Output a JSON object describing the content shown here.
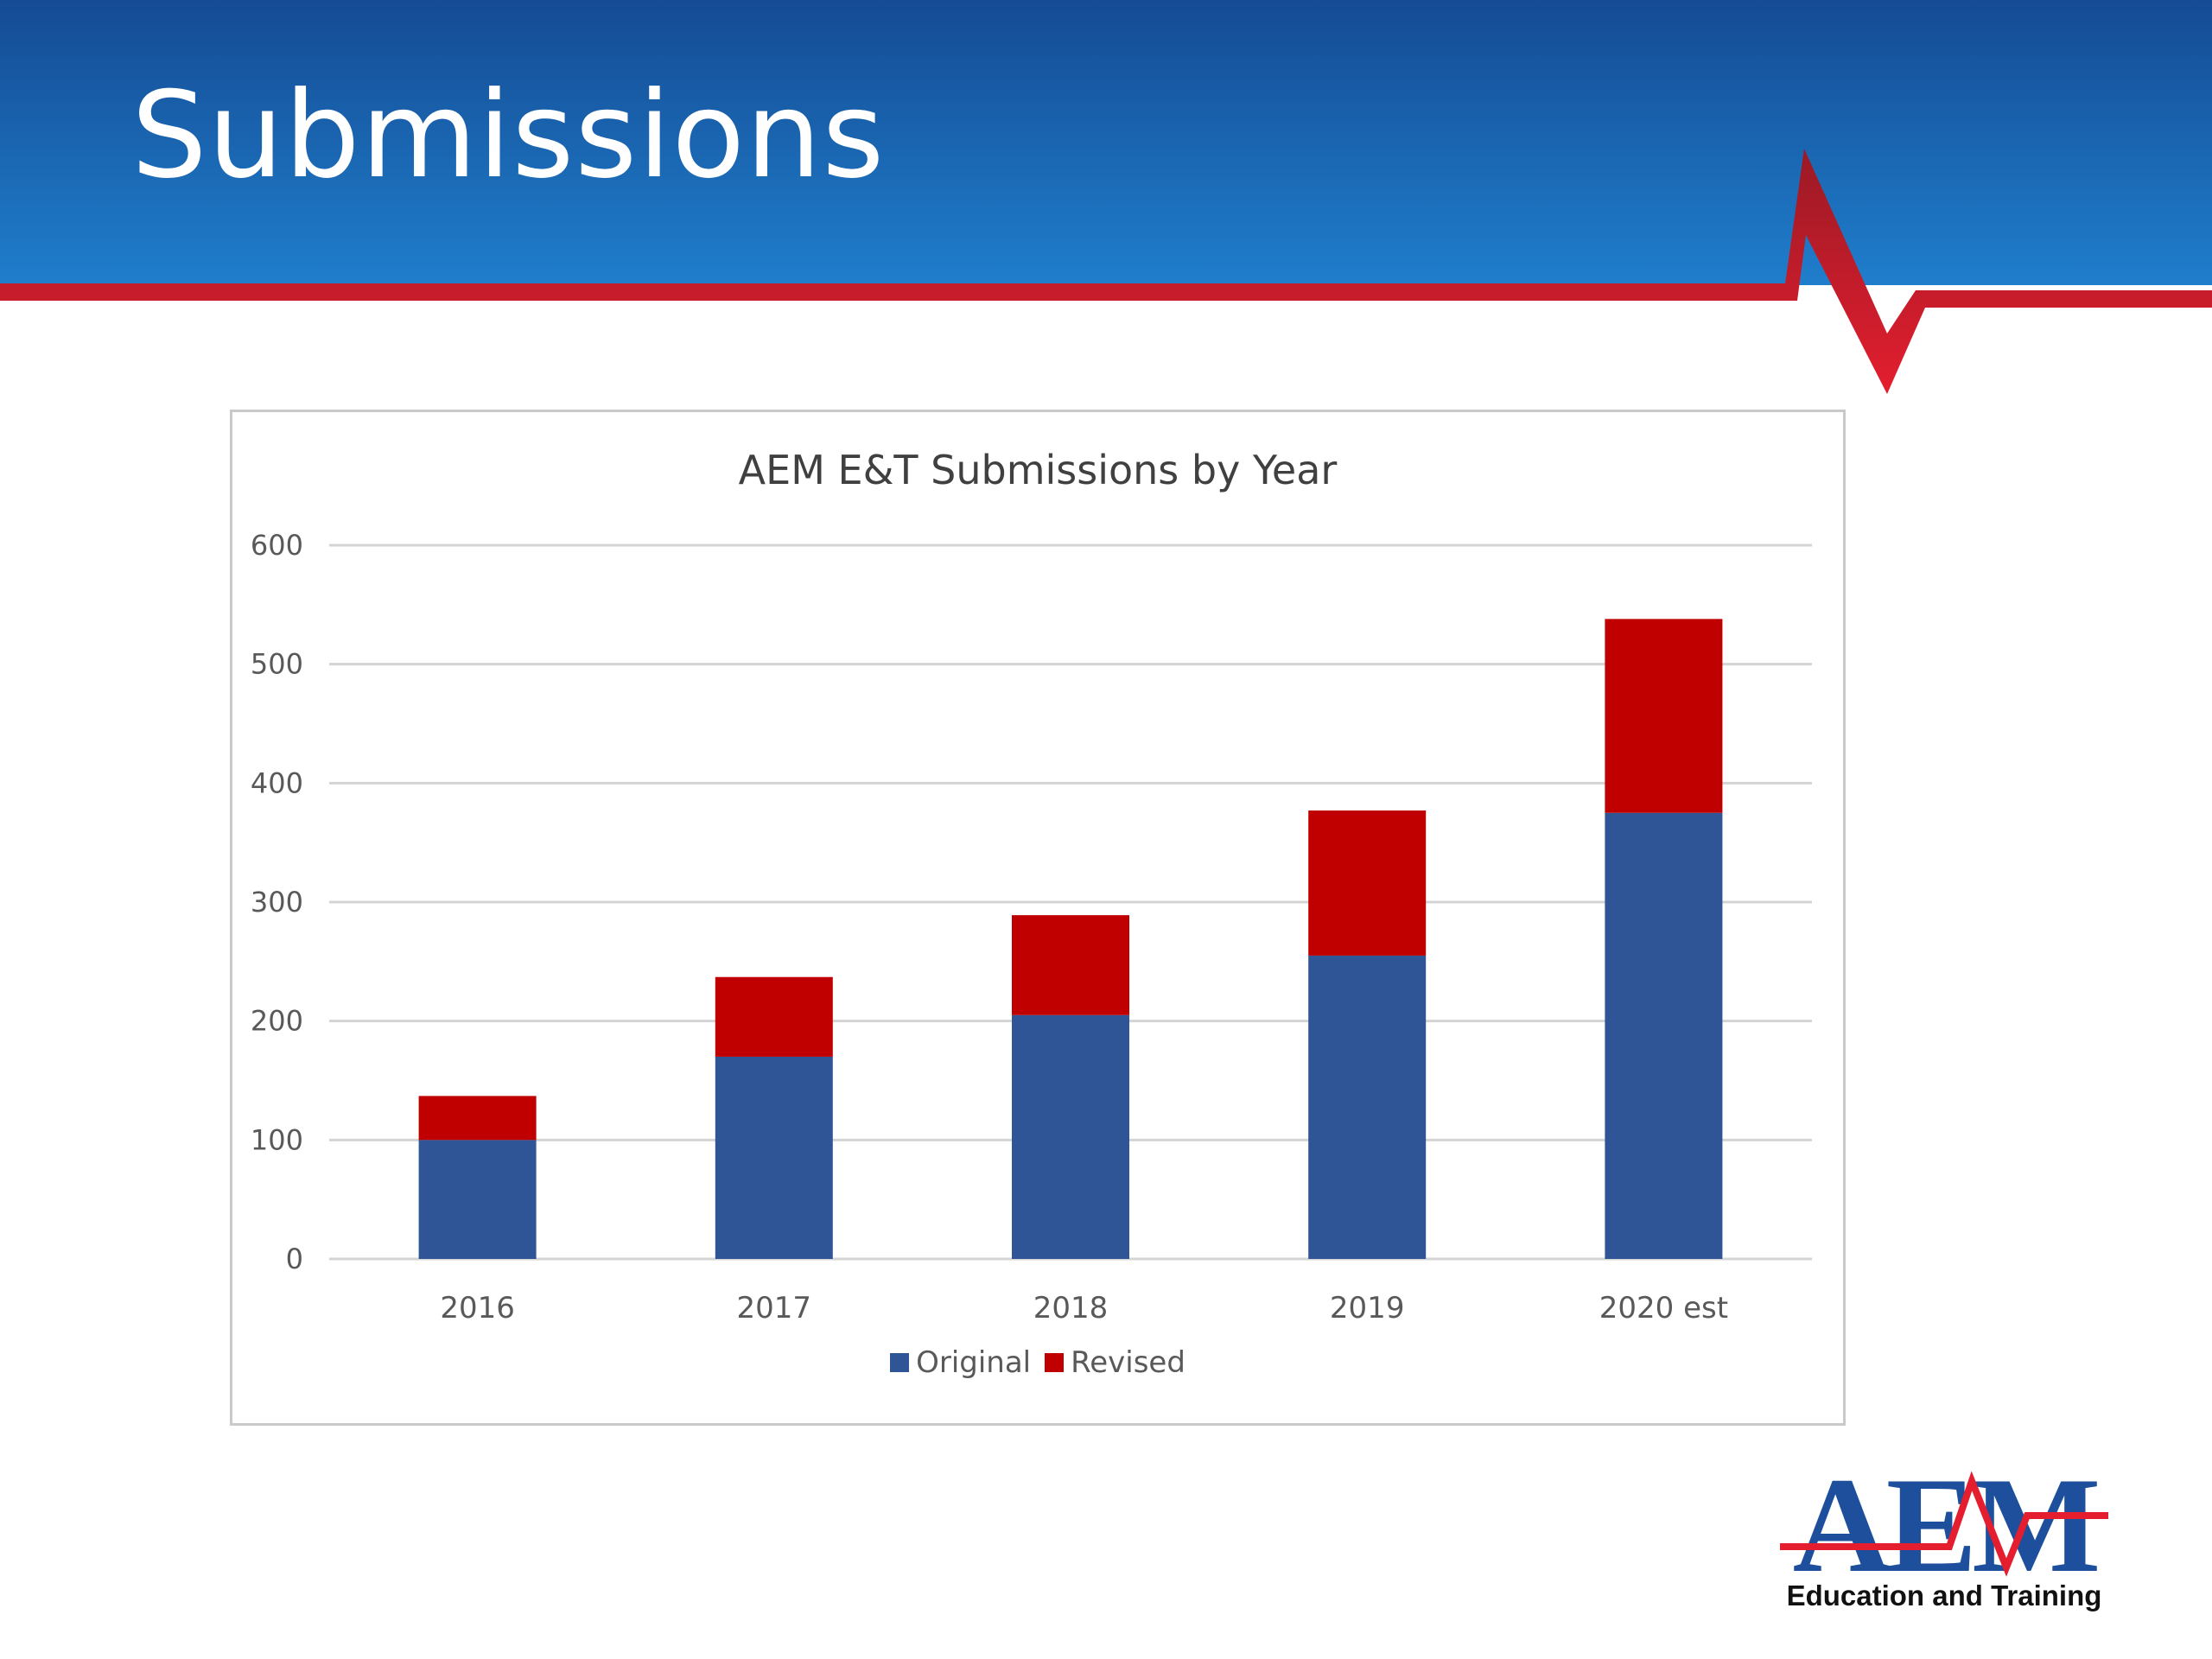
{
  "slide": {
    "title": "Submissions",
    "colors": {
      "header_blue": "#1a5aa6",
      "header_accent": "#e41e2f"
    }
  },
  "logo": {
    "letters": "AEM",
    "tagline": "Education and Training"
  },
  "chart_data": {
    "type": "bar",
    "stacked": true,
    "title": "AEM E&T Submissions by  Year",
    "xlabel": "",
    "ylabel": "",
    "categories": [
      "2016",
      "2017",
      "2018",
      "2019",
      "2020 est"
    ],
    "series": [
      {
        "name": "Original",
        "color": "#2f5597",
        "values": [
          100,
          170,
          205,
          255,
          375
        ]
      },
      {
        "name": "Revised",
        "color": "#c00000",
        "values": [
          37,
          67,
          84,
          122,
          163
        ]
      }
    ],
    "ylim": [
      0,
      600
    ],
    "yticks": [
      0,
      100,
      200,
      300,
      400,
      500,
      600
    ],
    "grid": true,
    "legend": "bottom"
  }
}
